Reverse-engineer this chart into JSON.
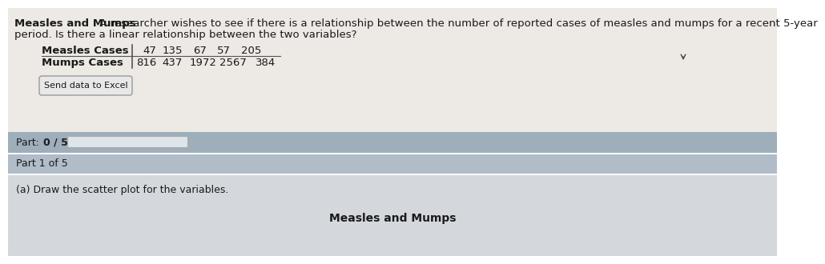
{
  "title_bold": "Measles and Mumps",
  "title_rest_line1": " A researcher wishes to see if there is a relationship between the number of reported cases of measles and mumps for a recent 5-year",
  "title_line2": "period. Is there a linear relationship between the two variables?",
  "measles_label": "Measles Cases",
  "mumps_label": "Mumps Cases",
  "measles_values": [
    47,
    135,
    67,
    57,
    205
  ],
  "mumps_values": [
    816,
    437,
    1972,
    2567,
    384
  ],
  "send_data_button": "Send data to Excel",
  "part_label_normal": "Part: ",
  "part_label_bold": "0 / 5",
  "part1_label": "Part 1 of 5",
  "instruction": "(a) Draw the scatter plot for the variables.",
  "scatter_title": "Measles and Mumps",
  "bg_top": "#ede9e4",
  "bg_part_band": "#9eaebb",
  "bg_part1_band": "#b0bcc8",
  "bg_instr_area": "#d4d8dc",
  "bg_bottom": "#c8cfd6",
  "progress_bar_color": "#dde4ea",
  "text_color": "#1a1a1a",
  "separator_color": "#555555",
  "btn_edge": "#999999",
  "btn_face": "#e8e8e8"
}
